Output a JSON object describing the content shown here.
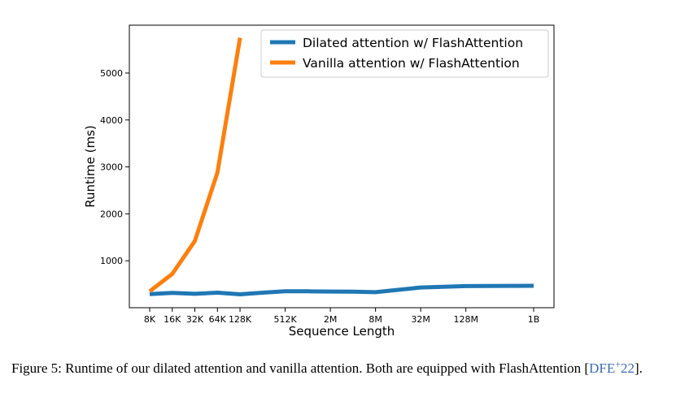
{
  "chart_data": {
    "type": "line",
    "title": "",
    "xlabel": "Sequence Length",
    "ylabel": "Runtime (ms)",
    "x_ticks": [
      "8K",
      "16K",
      "32K",
      "64K",
      "128K",
      "512K",
      "2M",
      "8M",
      "32M",
      "128M",
      "1B"
    ],
    "x_tick_log2": [
      13,
      14,
      15,
      16,
      17,
      19,
      21,
      23,
      25,
      27,
      30
    ],
    "y_ticks": [
      1000,
      2000,
      3000,
      4000,
      5000
    ],
    "xlim_log2": [
      12.1,
      30.9
    ],
    "ylim": [
      0,
      6020
    ],
    "grid": false,
    "legend_position": "upper right",
    "series": [
      {
        "name": "Dilated attention w/ FlashAttention",
        "color": "#1f77b4",
        "x_log2": [
          13,
          14,
          15,
          16,
          17,
          18,
          19,
          20,
          21,
          22,
          23,
          24,
          25,
          26,
          27,
          28,
          29,
          30
        ],
        "values": [
          290,
          315,
          295,
          320,
          285,
          320,
          350,
          350,
          345,
          340,
          330,
          380,
          430,
          445,
          460,
          463,
          465,
          467
        ]
      },
      {
        "name": "Vanilla attention w/ FlashAttention",
        "color": "#ff7f0e",
        "x_log2": [
          13,
          14,
          15,
          16,
          17
        ],
        "values": [
          350,
          720,
          1420,
          2880,
          5750
        ]
      }
    ]
  },
  "caption": {
    "text_before": "Figure 5: Runtime of our dilated attention and vanilla attention. Both are equipped with FlashAttention [",
    "cite_main": "DFE",
    "cite_sup": "+",
    "cite_year": "22",
    "text_after": "]."
  }
}
